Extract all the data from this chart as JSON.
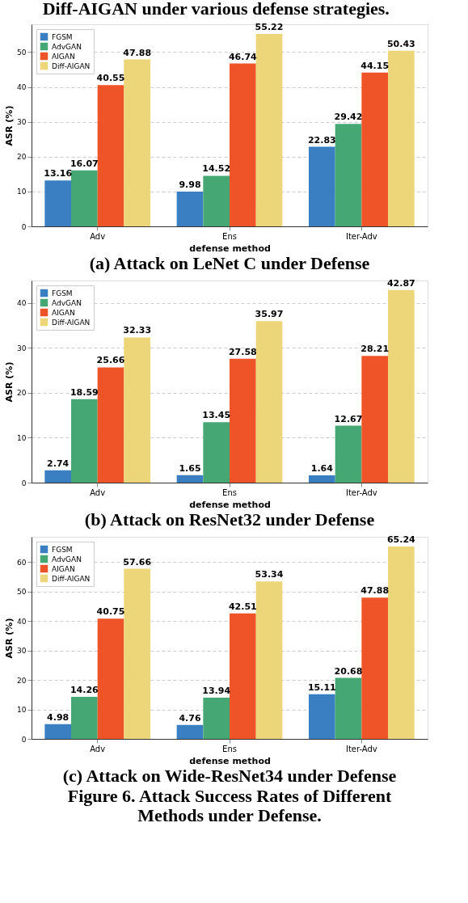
{
  "chart_data": [
    {
      "type": "bar",
      "title": "(a) Attack on LeNet C under Defense",
      "annotations": [
        "Diff-AIGAN under various defense strategies."
      ],
      "xlabel": "defense method",
      "ylabel": "ASR (%)",
      "categories": [
        "Adv",
        "Ens",
        "Iter-Adv"
      ],
      "series": [
        {
          "name": "FGSM",
          "color": "#3a7fc1",
          "values": [
            13.16,
            9.98,
            22.83
          ]
        },
        {
          "name": "AdvGAN",
          "color": "#45a874",
          "values": [
            16.07,
            14.52,
            29.42
          ]
        },
        {
          "name": "AIGAN",
          "color": "#ef5428",
          "values": [
            40.55,
            46.74,
            44.15
          ]
        },
        {
          "name": "Diff-AIGAN",
          "color": "#ecd679",
          "values": [
            47.88,
            55.22,
            50.43
          ]
        }
      ],
      "ylim": [
        0,
        58
      ],
      "yticks": [
        0,
        10,
        20,
        30,
        40,
        50
      ],
      "grid": "y",
      "legend": "top left",
      "data_labels": true
    },
    {
      "type": "bar",
      "title": "(b) Attack on ResNet32 under Defense",
      "xlabel": "defense method",
      "ylabel": "ASR (%)",
      "categories": [
        "Adv",
        "Ens",
        "Iter-Adv"
      ],
      "series": [
        {
          "name": "FGSM",
          "color": "#3a7fc1",
          "values": [
            2.74,
            1.65,
            1.64
          ]
        },
        {
          "name": "AdvGAN",
          "color": "#45a874",
          "values": [
            18.59,
            13.45,
            12.67
          ]
        },
        {
          "name": "AIGAN",
          "color": "#ef5428",
          "values": [
            25.66,
            27.58,
            28.21
          ]
        },
        {
          "name": "Diff-AIGAN",
          "color": "#ecd679",
          "values": [
            32.33,
            35.97,
            42.87
          ]
        }
      ],
      "ylim": [
        0,
        45
      ],
      "yticks": [
        0,
        10,
        20,
        30,
        40
      ],
      "grid": "y",
      "legend": "top left",
      "data_labels": true
    },
    {
      "type": "bar",
      "title": "(c) Attack on Wide-ResNet34 under Defense",
      "annotations": [
        "Figure 6. Attack Success Rates of Different",
        "Methods under Defense."
      ],
      "xlabel": "defense method",
      "ylabel": "ASR (%)",
      "categories": [
        "Adv",
        "Ens",
        "Iter-Adv"
      ],
      "series": [
        {
          "name": "FGSM",
          "color": "#3a7fc1",
          "values": [
            4.98,
            4.76,
            15.11
          ]
        },
        {
          "name": "AdvGAN",
          "color": "#45a874",
          "values": [
            14.26,
            13.94,
            20.68
          ]
        },
        {
          "name": "AIGAN",
          "color": "#ef5428",
          "values": [
            40.75,
            42.51,
            47.88
          ]
        },
        {
          "name": "Diff-AIGAN",
          "color": "#ecd679",
          "values": [
            57.66,
            53.34,
            65.24
          ]
        }
      ],
      "ylim": [
        0,
        68.5
      ],
      "yticks": [
        0,
        10,
        20,
        30,
        40,
        50,
        60
      ],
      "grid": "y",
      "legend": "top left",
      "data_labels": true
    }
  ]
}
